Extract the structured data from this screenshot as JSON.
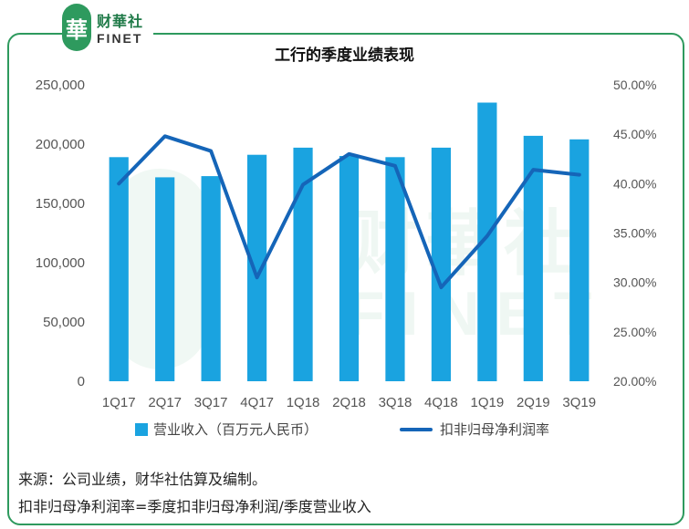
{
  "logo": {
    "mark": "華",
    "cn": "财華社",
    "en": "FINET"
  },
  "chart_data": {
    "type": "bar",
    "title": "工行的季度业绩表现",
    "categories": [
      "1Q17",
      "2Q17",
      "3Q17",
      "4Q17",
      "1Q18",
      "2Q18",
      "3Q18",
      "4Q18",
      "1Q19",
      "2Q19",
      "3Q19"
    ],
    "series": [
      {
        "name": "营业收入（百万元人民币）",
        "type": "bar",
        "axis": "left",
        "values": [
          189000,
          172000,
          173000,
          191000,
          197000,
          190000,
          189000,
          197000,
          235000,
          207000,
          204000
        ]
      },
      {
        "name": "扣非归母净利润率",
        "type": "line",
        "axis": "right",
        "values": [
          40.0,
          44.8,
          43.3,
          30.5,
          39.9,
          43.0,
          41.8,
          29.5,
          34.7,
          41.4,
          40.9
        ]
      }
    ],
    "y_left": {
      "min": 0,
      "max": 250000,
      "step": 50000,
      "tick_labels": [
        "0",
        "50,000",
        "100,000",
        "150,000",
        "200,000",
        "250,000"
      ]
    },
    "y_right": {
      "min": 20,
      "max": 50,
      "step": 5,
      "tick_labels": [
        "20.00%",
        "25.00%",
        "30.00%",
        "35.00%",
        "40.00%",
        "45.00%",
        "50.00%"
      ]
    },
    "grid": false,
    "legend": "bottom",
    "colors": {
      "bar": "#1aa3e0",
      "line": "#1565b8",
      "frame": "#2e9a5e"
    }
  },
  "notes": {
    "source": "来源：公司业绩，财华社估算及编制。",
    "definition": "扣非归母净利润率=季度扣非归母净利润/季度营业收入"
  }
}
